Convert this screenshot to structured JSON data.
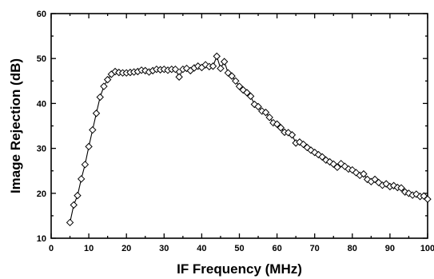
{
  "chart_data": {
    "type": "line",
    "title": "",
    "xlabel": "IF Frequency (MHz)",
    "ylabel": "Image Rejection (dB)",
    "xlim": [
      0,
      100
    ],
    "ylim": [
      10,
      60
    ],
    "xticks": [
      0,
      10,
      20,
      30,
      40,
      50,
      60,
      70,
      80,
      90,
      100
    ],
    "yticks": [
      10,
      20,
      30,
      40,
      50,
      60
    ],
    "grid": false,
    "legend": "none",
    "marker": "open-diamond",
    "line_color": "#000000",
    "series": [
      {
        "x": [
          5,
          6,
          7,
          8,
          9,
          10,
          11,
          12,
          13,
          14,
          15,
          16,
          17,
          18,
          19,
          20,
          21,
          22,
          23,
          24,
          25,
          26,
          27,
          28,
          29,
          30,
          31,
          32,
          33,
          34,
          35,
          36,
          37,
          38,
          39,
          40,
          41,
          42,
          43,
          44,
          45,
          46,
          47,
          48,
          49,
          50,
          51,
          52,
          53,
          54,
          55,
          56,
          57,
          58,
          59,
          60,
          61,
          62,
          63,
          64,
          65,
          66,
          67,
          68,
          69,
          70,
          71,
          72,
          73,
          74,
          75,
          76,
          77,
          78,
          79,
          80,
          81,
          82,
          83,
          84,
          85,
          86,
          87,
          88,
          89,
          90,
          91,
          92,
          93,
          94,
          95,
          96,
          97,
          98,
          99,
          100
        ],
        "y": [
          13.5,
          17.4,
          19.5,
          23.2,
          26.4,
          30.4,
          34.1,
          37.8,
          41.4,
          43.8,
          45.3,
          46.5,
          47.1,
          46.9,
          46.8,
          46.8,
          46.9,
          47.0,
          47.1,
          47.4,
          47.3,
          47.0,
          47.3,
          47.6,
          47.5,
          47.6,
          47.4,
          47.6,
          47.6,
          45.9,
          47.6,
          47.8,
          47.3,
          47.9,
          48.3,
          48.0,
          48.6,
          48.2,
          48.3,
          50.5,
          47.8,
          49.3,
          46.8,
          46.1,
          45.0,
          43.8,
          43.0,
          42.4,
          41.6,
          39.8,
          39.3,
          38.3,
          38.0,
          36.9,
          35.7,
          35.4,
          34.6,
          33.6,
          33.5,
          33.0,
          31.2,
          31.4,
          30.9,
          30.2,
          29.6,
          29.1,
          28.6,
          28.1,
          27.4,
          27.0,
          26.5,
          25.8,
          26.6,
          26.0,
          25.4,
          25.2,
          24.6,
          24.0,
          24.3,
          23.1,
          22.6,
          23.1,
          22.4,
          21.8,
          22.1,
          21.5,
          21.7,
          21.3,
          21.2,
          20.3,
          20.0,
          19.6,
          19.8,
          19.3,
          19.4,
          18.7
        ]
      }
    ]
  }
}
